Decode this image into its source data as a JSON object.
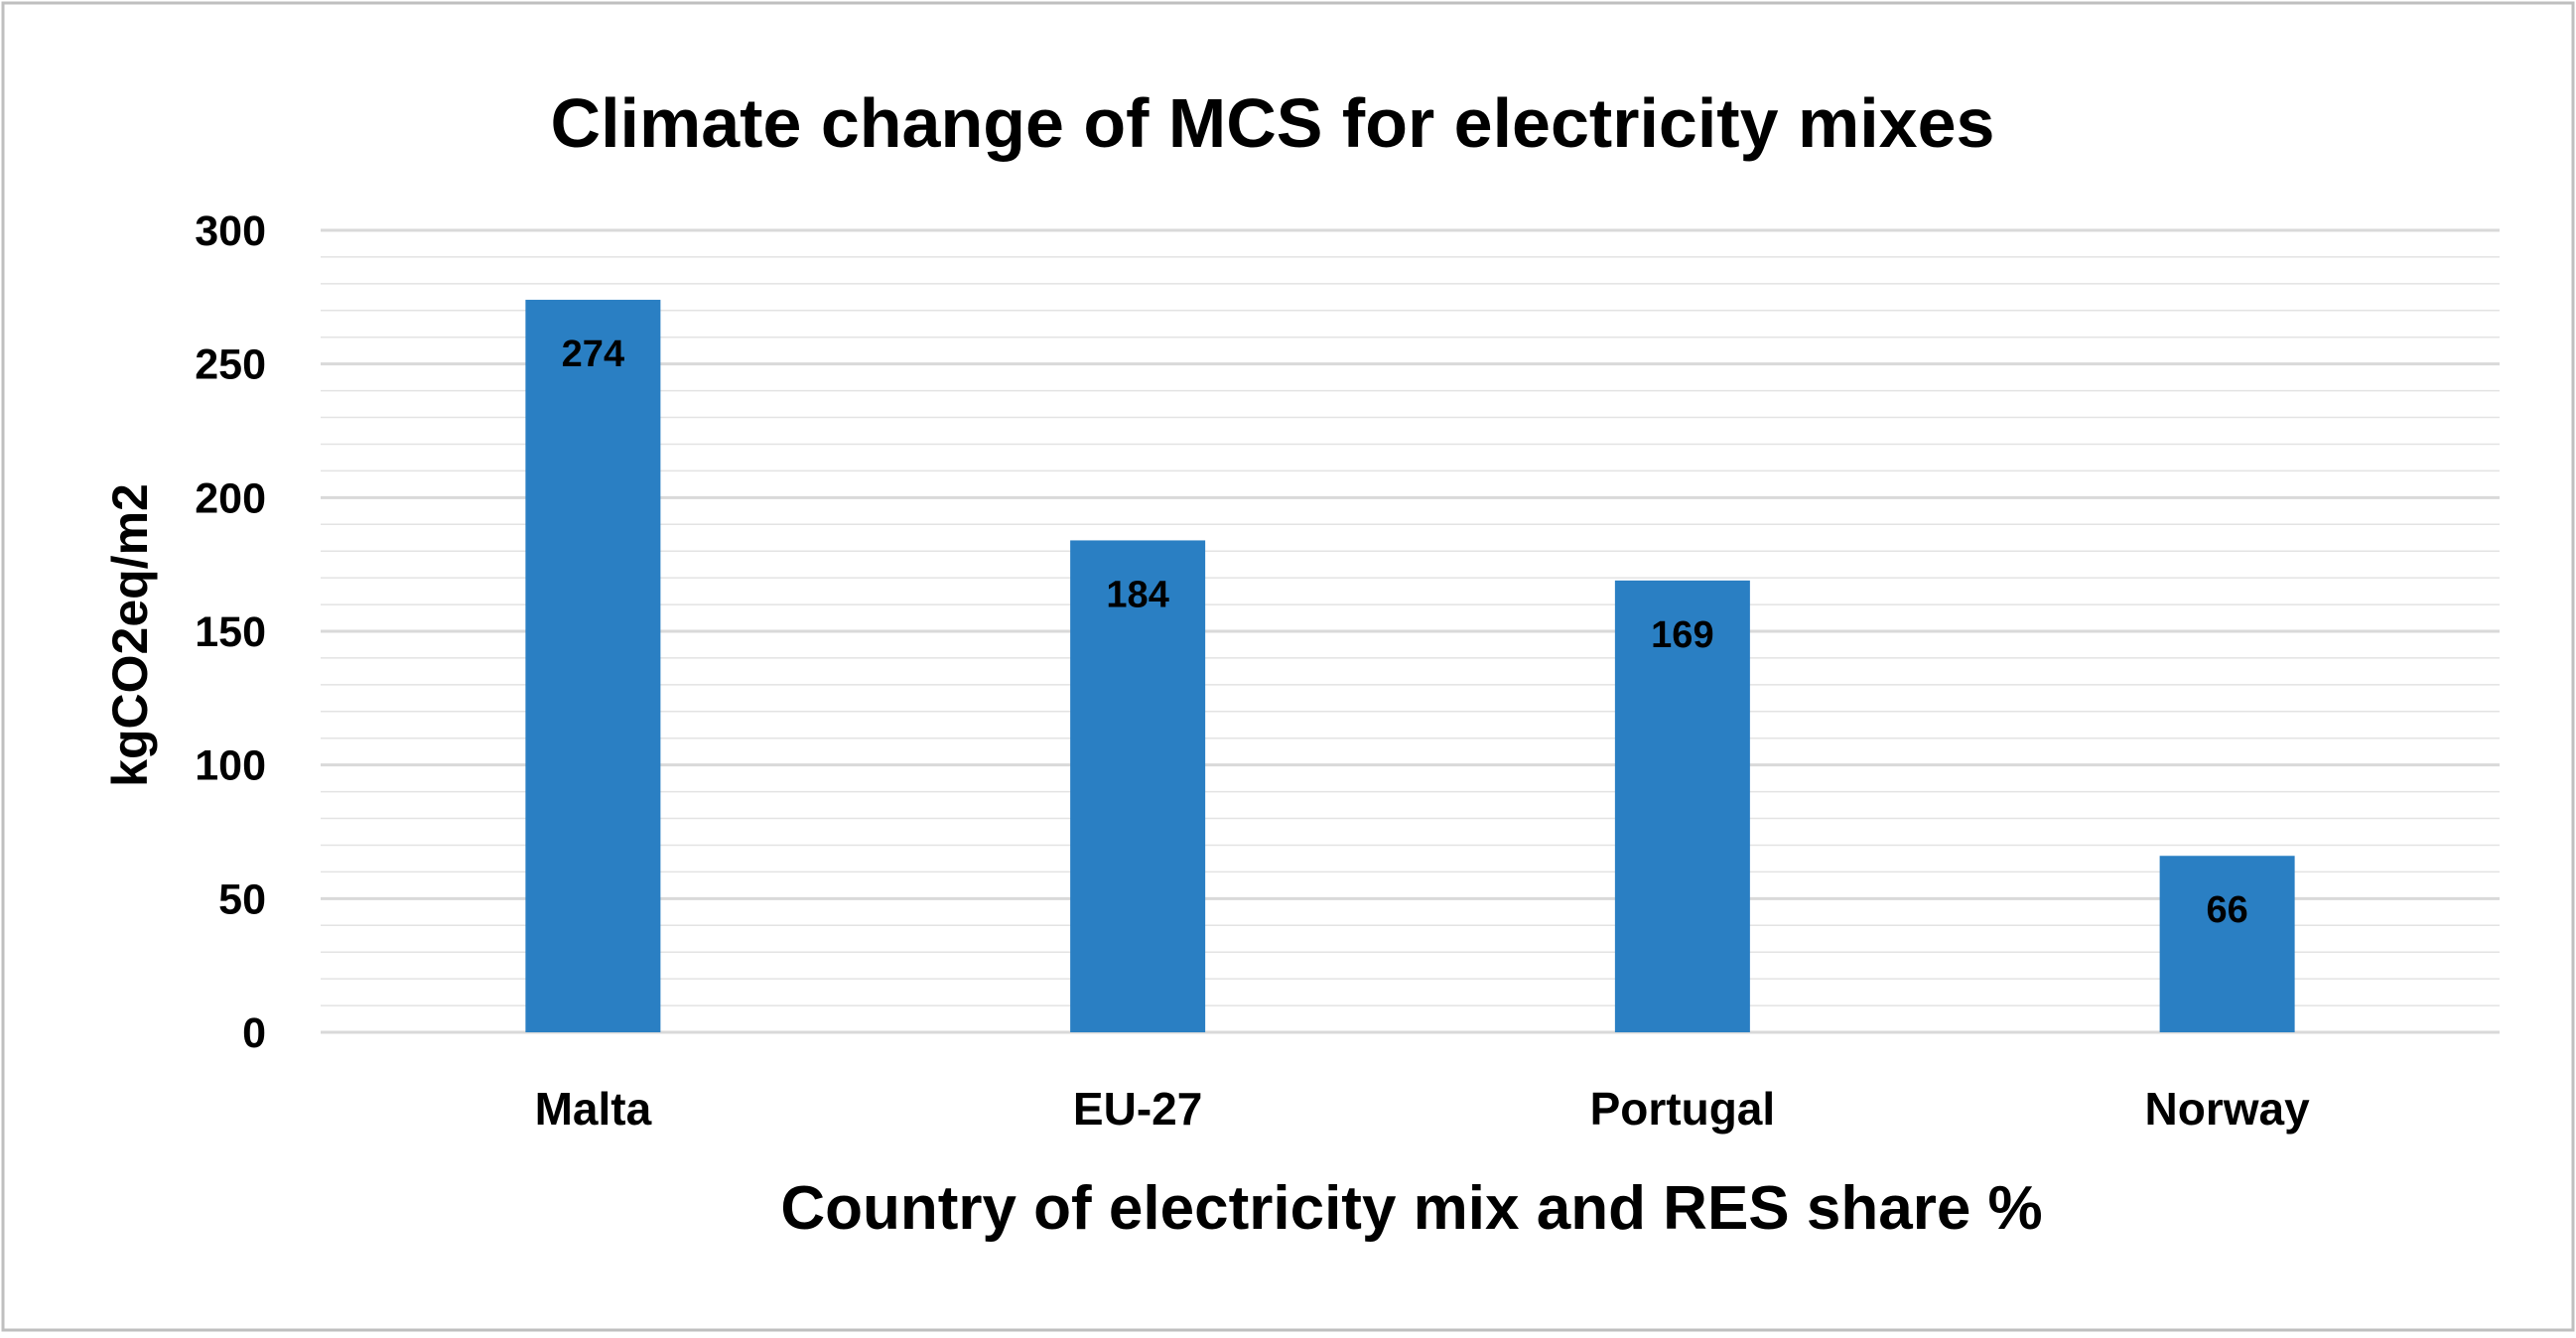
{
  "chart_data": {
    "type": "bar",
    "title": "Climate change of MCS for electricity mixes",
    "xlabel": "Country of electricity mix and RES share %",
    "ylabel": "kgCO2eq/m2",
    "categories": [
      "Malta",
      "EU-27",
      "Portugal",
      "Norway"
    ],
    "values": [
      274,
      184,
      169,
      66
    ],
    "data_labels": [
      "274",
      "184",
      "169",
      "66"
    ],
    "ylim": [
      0,
      300
    ],
    "yticks": [
      0,
      50,
      100,
      150,
      200,
      250,
      300
    ],
    "ytick_labels": [
      "0",
      "50",
      "100",
      "150",
      "200",
      "250",
      "300"
    ],
    "minor_gridline_step": 10,
    "grid": true,
    "bar_color": "#2A7FC3",
    "gridline_color": "#D9D9D9",
    "border_color": "#BFBFBF"
  }
}
